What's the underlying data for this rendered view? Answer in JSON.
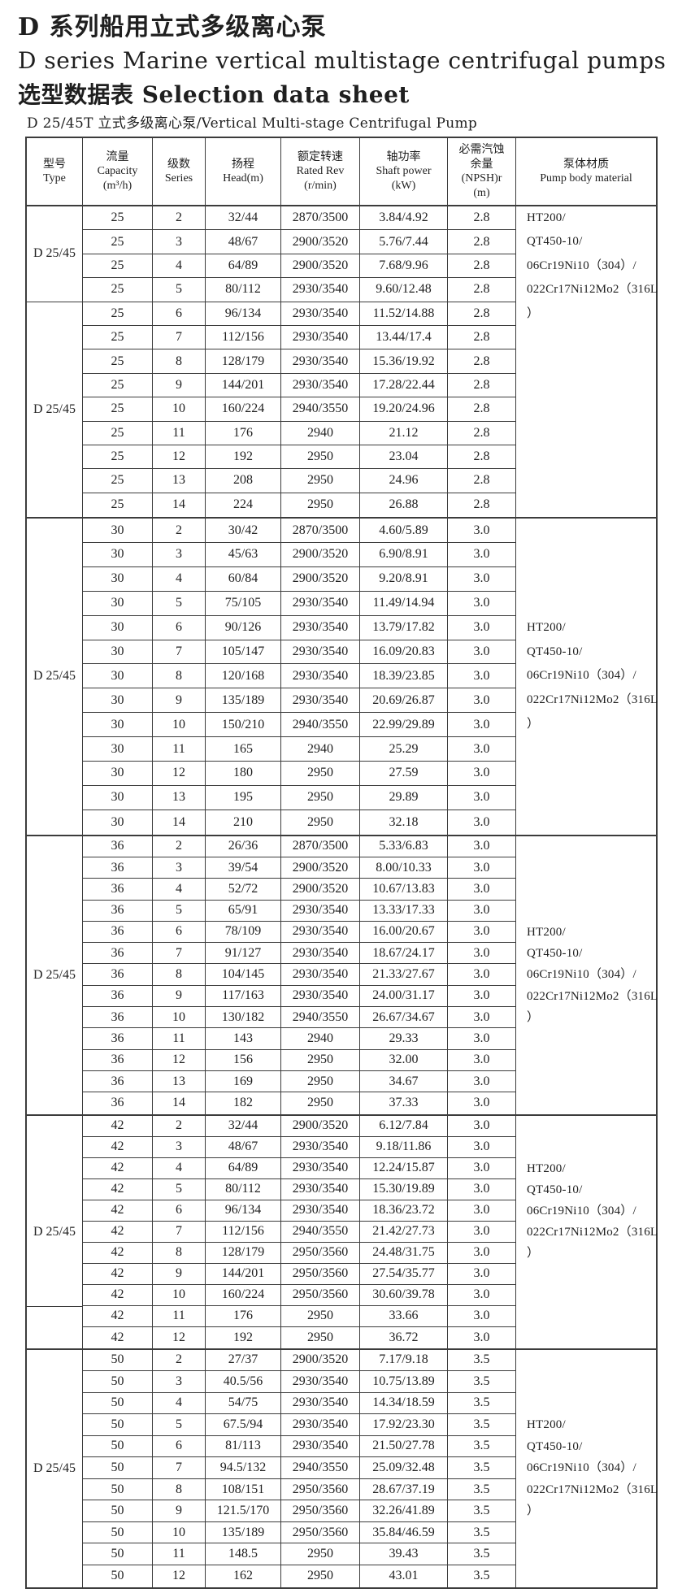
{
  "titles": {
    "line1": "D 系列船用立式多级离心泵",
    "line2": "D series Marine vertical multistage centrifugal pumps",
    "line3": "选型数据表 Selection data sheet",
    "subtitle": "D 25/45T 立式多级离心泵/Vertical Multi-stage Centrifugal Pump"
  },
  "colors": {
    "ink": "#1f1f1f",
    "line": "#3c3c3c",
    "paper": "#ffffff"
  },
  "table": {
    "columns": [
      {
        "id": "type",
        "lines": [
          "型号",
          "Type"
        ]
      },
      {
        "id": "capacity",
        "lines": [
          "流量",
          "Capacity",
          "(m³/h)"
        ]
      },
      {
        "id": "series",
        "lines": [
          "级数",
          "Series"
        ]
      },
      {
        "id": "head",
        "lines": [
          "扬程",
          "Head(m)"
        ]
      },
      {
        "id": "rated-rev",
        "lines": [
          "额定转速",
          "Rated Rev",
          "(r/min)"
        ]
      },
      {
        "id": "shaft-power",
        "lines": [
          "轴功率",
          "Shaft power",
          "(kW)"
        ]
      },
      {
        "id": "npshr",
        "lines": [
          "必需汽蚀",
          "余量",
          "(NPSH)r",
          "(m)"
        ]
      },
      {
        "id": "material",
        "lines": [
          "泵体材质",
          "Pump body material"
        ]
      }
    ],
    "material_lines": [
      "HT200/",
      "QT450-10/",
      "06Cr19Ni10（304）/",
      "022Cr17Ni12Mo2（316L",
      "）"
    ],
    "sections": [
      {
        "type_cells": [
          {
            "label": "D 25/45",
            "span": 4
          },
          {
            "label": "D 25/45",
            "span": 9
          }
        ],
        "material_start_row": 0,
        "rows": [
          [
            "25",
            "2",
            "32/44",
            "2870/3500",
            "3.84/4.92",
            "2.8"
          ],
          [
            "25",
            "3",
            "48/67",
            "2900/3520",
            "5.76/7.44",
            "2.8"
          ],
          [
            "25",
            "4",
            "64/89",
            "2900/3520",
            "7.68/9.96",
            "2.8"
          ],
          [
            "25",
            "5",
            "80/112",
            "2930/3540",
            "9.60/12.48",
            "2.8"
          ],
          [
            "25",
            "6",
            "96/134",
            "2930/3540",
            "11.52/14.88",
            "2.8"
          ],
          [
            "25",
            "7",
            "112/156",
            "2930/3540",
            "13.44/17.4",
            "2.8"
          ],
          [
            "25",
            "8",
            "128/179",
            "2930/3540",
            "15.36/19.92",
            "2.8"
          ],
          [
            "25",
            "9",
            "144/201",
            "2930/3540",
            "17.28/22.44",
            "2.8"
          ],
          [
            "25",
            "10",
            "160/224",
            "2940/3550",
            "19.20/24.96",
            "2.8"
          ],
          [
            "25",
            "11",
            "176",
            "2940",
            "21.12",
            "2.8"
          ],
          [
            "25",
            "12",
            "192",
            "2950",
            "23.04",
            "2.8"
          ],
          [
            "25",
            "13",
            "208",
            "2950",
            "24.96",
            "2.8"
          ],
          [
            "25",
            "14",
            "224",
            "2950",
            "26.88",
            "2.8"
          ]
        ]
      },
      {
        "type_cells": [
          {
            "label": "D 25/45",
            "span": 13
          }
        ],
        "material_start_row": 4,
        "rows": [
          [
            "30",
            "2",
            "30/42",
            "2870/3500",
            "4.60/5.89",
            "3.0"
          ],
          [
            "30",
            "3",
            "45/63",
            "2900/3520",
            "6.90/8.91",
            "3.0"
          ],
          [
            "30",
            "4",
            "60/84",
            "2900/3520",
            "9.20/8.91",
            "3.0"
          ],
          [
            "30",
            "5",
            "75/105",
            "2930/3540",
            "11.49/14.94",
            "3.0"
          ],
          [
            "30",
            "6",
            "90/126",
            "2930/3540",
            "13.79/17.82",
            "3.0"
          ],
          [
            "30",
            "7",
            "105/147",
            "2930/3540",
            "16.09/20.83",
            "3.0"
          ],
          [
            "30",
            "8",
            "120/168",
            "2930/3540",
            "18.39/23.85",
            "3.0"
          ],
          [
            "30",
            "9",
            "135/189",
            "2930/3540",
            "20.69/26.87",
            "3.0"
          ],
          [
            "30",
            "10",
            "150/210",
            "2940/3550",
            "22.99/29.89",
            "3.0"
          ],
          [
            "30",
            "11",
            "165",
            "2940",
            "25.29",
            "3.0"
          ],
          [
            "30",
            "12",
            "180",
            "2950",
            "27.59",
            "3.0"
          ],
          [
            "30",
            "13",
            "195",
            "2950",
            "29.89",
            "3.0"
          ],
          [
            "30",
            "14",
            "210",
            "2950",
            "32.18",
            "3.0"
          ]
        ]
      },
      {
        "type_cells": [
          {
            "label": "D 25/45",
            "span": 13
          }
        ],
        "material_start_row": 4,
        "rows": [
          [
            "36",
            "2",
            "26/36",
            "2870/3500",
            "5.33/6.83",
            "3.0"
          ],
          [
            "36",
            "3",
            "39/54",
            "2900/3520",
            "8.00/10.33",
            "3.0"
          ],
          [
            "36",
            "4",
            "52/72",
            "2900/3520",
            "10.67/13.83",
            "3.0"
          ],
          [
            "36",
            "5",
            "65/91",
            "2930/3540",
            "13.33/17.33",
            "3.0"
          ],
          [
            "36",
            "6",
            "78/109",
            "2930/3540",
            "16.00/20.67",
            "3.0"
          ],
          [
            "36",
            "7",
            "91/127",
            "2930/3540",
            "18.67/24.17",
            "3.0"
          ],
          [
            "36",
            "8",
            "104/145",
            "2930/3540",
            "21.33/27.67",
            "3.0"
          ],
          [
            "36",
            "9",
            "117/163",
            "2930/3540",
            "24.00/31.17",
            "3.0"
          ],
          [
            "36",
            "10",
            "130/182",
            "2940/3550",
            "26.67/34.67",
            "3.0"
          ],
          [
            "36",
            "11",
            "143",
            "2940",
            "29.33",
            "3.0"
          ],
          [
            "36",
            "12",
            "156",
            "2950",
            "32.00",
            "3.0"
          ],
          [
            "36",
            "13",
            "169",
            "2950",
            "34.67",
            "3.0"
          ],
          [
            "36",
            "14",
            "182",
            "2950",
            "37.33",
            "3.0"
          ]
        ]
      },
      {
        "type_cells": [
          {
            "label": "D 25/45",
            "span": 11,
            "artifact_row": 9
          }
        ],
        "material_start_row": 2,
        "rows": [
          [
            "42",
            "2",
            "32/44",
            "2900/3520",
            "6.12/7.84",
            "3.0"
          ],
          [
            "42",
            "3",
            "48/67",
            "2930/3540",
            "9.18/11.86",
            "3.0"
          ],
          [
            "42",
            "4",
            "64/89",
            "2930/3540",
            "12.24/15.87",
            "3.0"
          ],
          [
            "42",
            "5",
            "80/112",
            "2930/3540",
            "15.30/19.89",
            "3.0"
          ],
          [
            "42",
            "6",
            "96/134",
            "2930/3540",
            "18.36/23.72",
            "3.0"
          ],
          [
            "42",
            "7",
            "112/156",
            "2940/3550",
            "21.42/27.73",
            "3.0"
          ],
          [
            "42",
            "8",
            "128/179",
            "2950/3560",
            "24.48/31.75",
            "3.0"
          ],
          [
            "42",
            "9",
            "144/201",
            "2950/3560",
            "27.54/35.77",
            "3.0"
          ],
          [
            "42",
            "10",
            "160/224",
            "2950/3560",
            "30.60/39.78",
            "3.0"
          ],
          [
            "42",
            "11",
            "176",
            "2950",
            "33.66",
            "3.0"
          ],
          [
            "42",
            "12",
            "192",
            "2950",
            "36.72",
            "3.0"
          ]
        ]
      },
      {
        "type_cells": [
          {
            "label": "D 25/45",
            "span": 11
          }
        ],
        "material_start_row": 3,
        "rows": [
          [
            "50",
            "2",
            "27/37",
            "2900/3520",
            "7.17/9.18",
            "3.5"
          ],
          [
            "50",
            "3",
            "40.5/56",
            "2930/3540",
            "10.75/13.89",
            "3.5"
          ],
          [
            "50",
            "4",
            "54/75",
            "2930/3540",
            "14.34/18.59",
            "3.5"
          ],
          [
            "50",
            "5",
            "67.5/94",
            "2930/3540",
            "17.92/23.30",
            "3.5"
          ],
          [
            "50",
            "6",
            "81/113",
            "2930/3540",
            "21.50/27.78",
            "3.5"
          ],
          [
            "50",
            "7",
            "94.5/132",
            "2940/3550",
            "25.09/32.48",
            "3.5"
          ],
          [
            "50",
            "8",
            "108/151",
            "2950/3560",
            "28.67/37.19",
            "3.5"
          ],
          [
            "50",
            "9",
            "121.5/170",
            "2950/3560",
            "32.26/41.89",
            "3.5"
          ],
          [
            "50",
            "10",
            "135/189",
            "2950/3560",
            "35.84/46.59",
            "3.5"
          ],
          [
            "50",
            "11",
            "148.5",
            "2950",
            "39.43",
            "3.5"
          ],
          [
            "50",
            "12",
            "162",
            "2950",
            "43.01",
            "3.5"
          ]
        ]
      }
    ]
  }
}
